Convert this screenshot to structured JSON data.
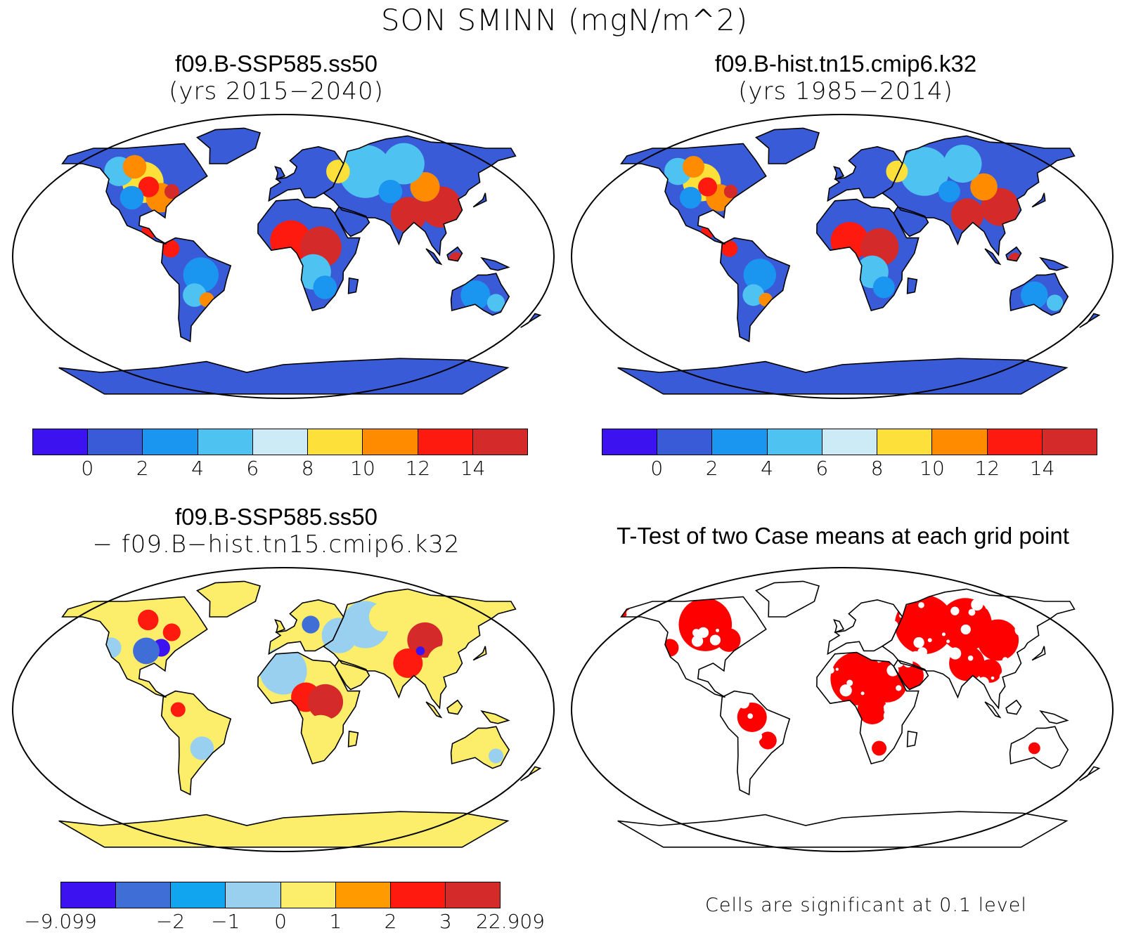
{
  "figure": {
    "title": "SON SMINN (mgN/m^2)"
  },
  "panels": [
    {
      "case": "f09.B-SSP585.ss50",
      "subtitle": "(yrs 2015−2040)"
    },
    {
      "case": "f09.B-hist.tn15.cmip6.k32",
      "subtitle": "(yrs 1985−2014)"
    },
    {
      "case": "f09.B-SSP585.ss50",
      "subtitle": "− f09.B−hist.tn15.cmip6.k32"
    },
    {
      "title": "T-Test of two Case means at each grid point",
      "note": "Cells are significant at 0.1 level",
      "significant_color": "#ff0000"
    }
  ],
  "colorbars": {
    "mean": {
      "colors": [
        "#3d12f0",
        "#3a5bd8",
        "#1a95f0",
        "#4ec2f0",
        "#cdeaf7",
        "#fde03a",
        "#ff8c00",
        "#ff1a0f",
        "#d42a2a"
      ],
      "labels": [
        "0",
        "2",
        "4",
        "6",
        "8",
        "10",
        "12",
        "14"
      ]
    },
    "diff": {
      "colors": [
        "#3d12f0",
        "#3f6fd6",
        "#11a5f0",
        "#99d0ef",
        "#fcee6a",
        "#ff9a00",
        "#ff1a0f",
        "#d42a2a"
      ],
      "labels": [
        "−9.099",
        "",
        "−2",
        "−1",
        "0",
        "1",
        "2",
        "3",
        "22.909"
      ]
    }
  },
  "chart_data": {
    "type": "heatmap",
    "title": "SON SMINN (mgN/m^2)",
    "mean_levels": [
      0,
      2,
      4,
      6,
      8,
      10,
      12,
      14
    ],
    "diff_levels": [
      -9.099,
      -2,
      -1,
      0,
      1,
      2,
      3,
      22.909
    ],
    "significance_level": 0.1
  }
}
